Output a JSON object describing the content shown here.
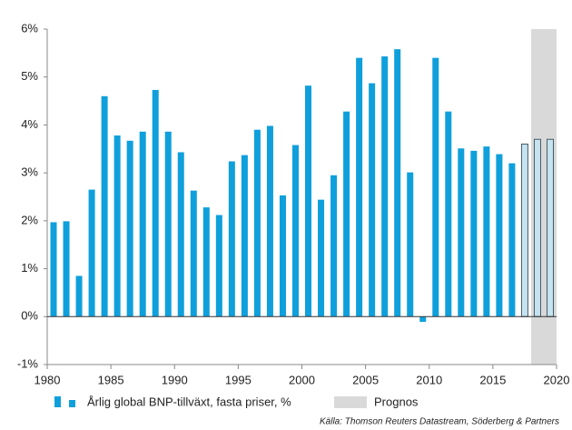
{
  "chart_data": {
    "type": "bar",
    "x": [
      1980,
      1981,
      1982,
      1983,
      1984,
      1985,
      1986,
      1987,
      1988,
      1989,
      1990,
      1991,
      1992,
      1993,
      1994,
      1995,
      1996,
      1997,
      1998,
      1999,
      2000,
      2001,
      2002,
      2003,
      2004,
      2005,
      2006,
      2007,
      2008,
      2009,
      2010,
      2011,
      2012,
      2013,
      2014,
      2015,
      2016,
      2017,
      2018,
      2019
    ],
    "series": [
      {
        "name": "Årlig global BNP-tillväxt, fasta priser, %",
        "color": "#0fa0dc",
        "values": [
          1.97,
          1.99,
          0.85,
          2.65,
          4.6,
          3.78,
          3.67,
          3.86,
          4.73,
          3.86,
          3.43,
          2.63,
          2.28,
          2.12,
          3.24,
          3.37,
          3.9,
          3.98,
          2.53,
          3.58,
          4.82,
          2.44,
          2.95,
          4.28,
          5.4,
          4.87,
          5.43,
          5.58,
          3.01,
          -0.11,
          5.4,
          4.28,
          3.51,
          3.46,
          3.55,
          3.39,
          3.2,
          3.6,
          3.7,
          3.7
        ]
      }
    ],
    "forecast": {
      "label": "Prognos",
      "span": [
        2018,
        2020
      ],
      "color": "#d9d9d9",
      "from": 2017,
      "bar_color": "#c5e3f0",
      "bar_edge": "#4a5a66"
    },
    "xlim": [
      1980,
      2020
    ],
    "xticks": [
      1980,
      1985,
      1990,
      1995,
      2000,
      2005,
      2010,
      2015,
      2020
    ],
    "ylim": [
      -1,
      6
    ],
    "yticks": [
      {
        "value": -1,
        "label": "-1%"
      },
      {
        "value": 0,
        "label": "0%"
      },
      {
        "value": 1,
        "label": "1%"
      },
      {
        "value": 2,
        "label": "2%"
      },
      {
        "value": 3,
        "label": "3%"
      },
      {
        "value": 4,
        "label": "4%"
      },
      {
        "value": 5,
        "label": "5%"
      },
      {
        "value": 6,
        "label": "6%"
      }
    ],
    "source": "Källa: Thomson Reuters Datastream, Söderberg & Partners"
  }
}
